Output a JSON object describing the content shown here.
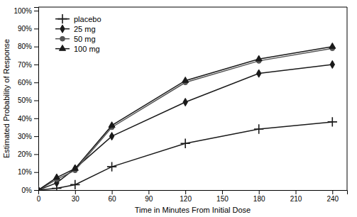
{
  "chart_data": {
    "type": "line",
    "xlabel": "Time in Minutes From Initial Dose",
    "ylabel": "Estimated Probability of Response",
    "x": [
      0,
      15,
      30,
      60,
      120,
      180,
      240
    ],
    "xlim": [
      0,
      252
    ],
    "ylim": [
      0,
      1.02
    ],
    "xticks": [
      0,
      30,
      60,
      90,
      120,
      150,
      180,
      210,
      240
    ],
    "yticks": [
      {
        "value": 0.0,
        "label": "0%"
      },
      {
        "value": 0.1,
        "label": "10%"
      },
      {
        "value": 0.2,
        "label": "20%"
      },
      {
        "value": 0.3,
        "label": "30%"
      },
      {
        "value": 0.4,
        "label": "40%"
      },
      {
        "value": 0.5,
        "label": "50%"
      },
      {
        "value": 0.6,
        "label": "60%"
      },
      {
        "value": 0.7,
        "label": "70%"
      },
      {
        "value": 0.8,
        "label": "80%"
      },
      {
        "value": 0.9,
        "label": "90%"
      },
      {
        "value": 1.0,
        "label": "100%"
      }
    ],
    "grid": false,
    "legend": "upper left",
    "series": [
      {
        "name": "placebo",
        "color": "#1a1a1a",
        "marker": "plus",
        "values": [
          0,
          0.01,
          0.03,
          0.13,
          0.26,
          0.34,
          0.38
        ]
      },
      {
        "name": "25 mg",
        "color": "#1a1a1a",
        "marker": "diamond",
        "values": [
          0,
          0.04,
          0.12,
          0.3,
          0.49,
          0.65,
          0.7
        ]
      },
      {
        "name": "50 mg",
        "color": "#555555",
        "marker": "circle",
        "values": [
          0,
          0.06,
          0.11,
          0.35,
          0.6,
          0.72,
          0.79
        ]
      },
      {
        "name": "100 mg",
        "color": "#1a1a1a",
        "marker": "triangle",
        "values": [
          0,
          0.07,
          0.12,
          0.36,
          0.61,
          0.73,
          0.8
        ]
      }
    ]
  }
}
